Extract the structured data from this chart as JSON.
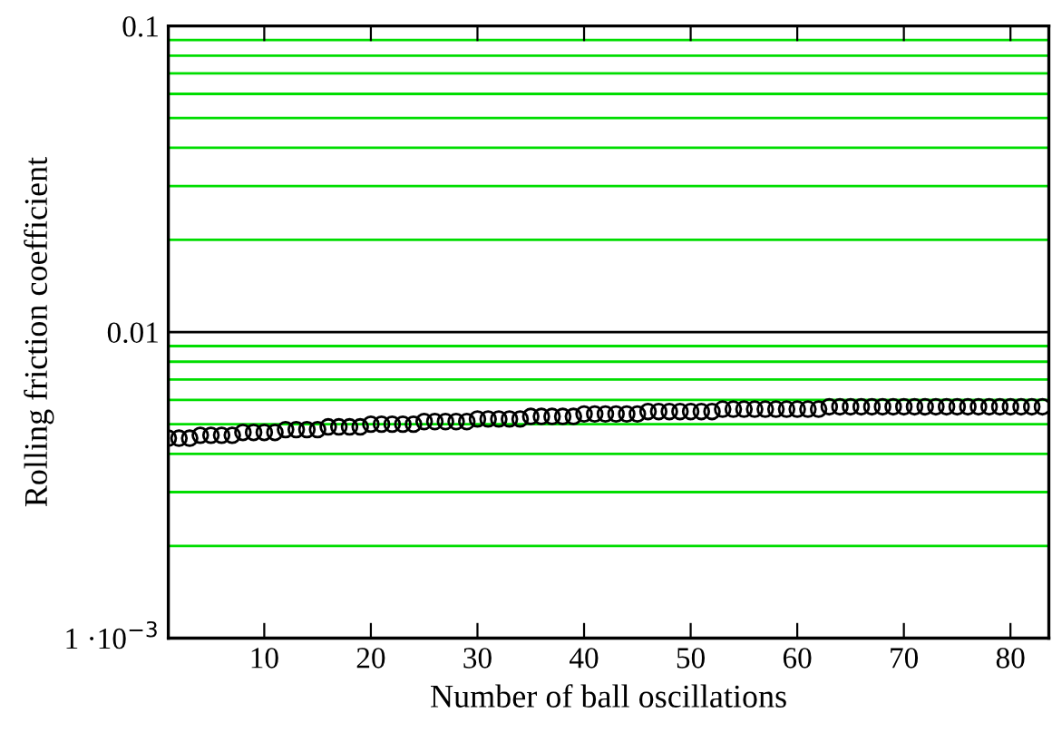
{
  "chart_data": {
    "type": "scatter",
    "xlabel": "Number of ball oscillations",
    "ylabel": "Rolling friction coefficient",
    "log": "y",
    "grid": "y",
    "marker": "circle",
    "ref_lines": [
      {
        "axis": "y",
        "value": 0.01,
        "color": "#000000"
      }
    ],
    "xlim": [
      1,
      83.6
    ],
    "xticks": [
      10,
      20,
      30,
      40,
      50,
      60,
      70,
      80
    ],
    "ylim": [
      0.001,
      0.1
    ],
    "yticks": [
      {
        "value": 0.001,
        "label": "1 ·10$^{−3}$"
      },
      {
        "value": 0.002,
        "label": null
      },
      {
        "value": 0.003,
        "label": null
      },
      {
        "value": 0.004,
        "label": null
      },
      {
        "value": 0.005,
        "label": null
      },
      {
        "value": 0.006,
        "label": null
      },
      {
        "value": 0.007,
        "label": null
      },
      {
        "value": 0.008,
        "label": null
      },
      {
        "value": 0.009,
        "label": null
      },
      0.01,
      {
        "value": 0.02,
        "label": null
      },
      {
        "value": 0.03,
        "label": null
      },
      {
        "value": 0.04,
        "label": null
      },
      {
        "value": 0.05,
        "label": null
      },
      {
        "value": 0.06,
        "label": null
      },
      {
        "value": 0.07,
        "label": null
      },
      {
        "value": 0.08,
        "label": null
      },
      {
        "value": 0.09,
        "label": null
      },
      0.1
    ],
    "series": [
      {
        "color": "#000000",
        "x": [
          1,
          2,
          3,
          4,
          5,
          6,
          7,
          8,
          9,
          10,
          11,
          12,
          13,
          14,
          15,
          16,
          17,
          18,
          19,
          20,
          21,
          22,
          23,
          24,
          25,
          26,
          27,
          28,
          29,
          30,
          31,
          32,
          33,
          34,
          35,
          36,
          37,
          38,
          39,
          40,
          41,
          42,
          43,
          44,
          45,
          46,
          47,
          48,
          49,
          50,
          51,
          52,
          53,
          54,
          55,
          56,
          57,
          58,
          59,
          60,
          61,
          62,
          63,
          64,
          65,
          66,
          67,
          68,
          69,
          70,
          71,
          72,
          73,
          74,
          75,
          76,
          77,
          78,
          79,
          80,
          81,
          82,
          83
        ],
        "values": [
          0.0045,
          0.0045,
          0.0045,
          0.0046,
          0.0046,
          0.0046,
          0.0046,
          0.0047,
          0.0047,
          0.0047,
          0.0047,
          0.0048,
          0.0048,
          0.0048,
          0.0048,
          0.0049,
          0.0049,
          0.0049,
          0.0049,
          0.005,
          0.005,
          0.005,
          0.005,
          0.005,
          0.0051,
          0.0051,
          0.0051,
          0.0051,
          0.0051,
          0.0052,
          0.0052,
          0.0052,
          0.0052,
          0.0052,
          0.0053,
          0.0053,
          0.0053,
          0.0053,
          0.0053,
          0.0054,
          0.0054,
          0.0054,
          0.0054,
          0.0054,
          0.0054,
          0.0055,
          0.0055,
          0.0055,
          0.0055,
          0.0055,
          0.0055,
          0.0055,
          0.0056,
          0.0056,
          0.0056,
          0.0056,
          0.0056,
          0.0056,
          0.0056,
          0.0056,
          0.0056,
          0.0056,
          0.0057,
          0.0057,
          0.0057,
          0.0057,
          0.0057,
          0.0057,
          0.0057,
          0.0057,
          0.0057,
          0.0057,
          0.0057,
          0.0057,
          0.0057,
          0.0057,
          0.0057,
          0.0057,
          0.0057,
          0.0057,
          0.0057,
          0.0057,
          0.0057
        ]
      }
    ]
  }
}
